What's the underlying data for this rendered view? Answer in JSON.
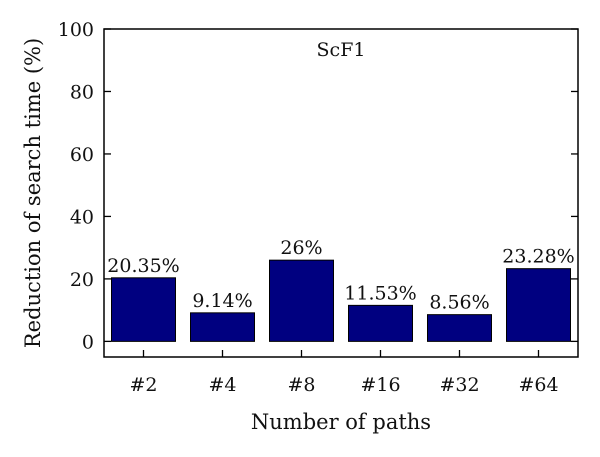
{
  "chart_data": {
    "type": "bar",
    "title": "ScF1",
    "xlabel": "Number of paths",
    "ylabel": "Reduction of search time (%)",
    "categories": [
      "#2",
      "#4",
      "#8",
      "#16",
      "#32",
      "#64"
    ],
    "values": [
      20.35,
      9.14,
      26,
      11.53,
      8.56,
      23.28
    ],
    "data_labels": [
      "20.35%",
      "9.14%",
      "26%",
      "11.53%",
      "8.56%",
      "23.28%"
    ],
    "ylim": [
      -5,
      100
    ],
    "yticks": [
      0,
      20,
      40,
      60,
      80,
      100
    ],
    "grid": false,
    "colors": {
      "bar": "#000080",
      "axis": "#000000"
    }
  }
}
